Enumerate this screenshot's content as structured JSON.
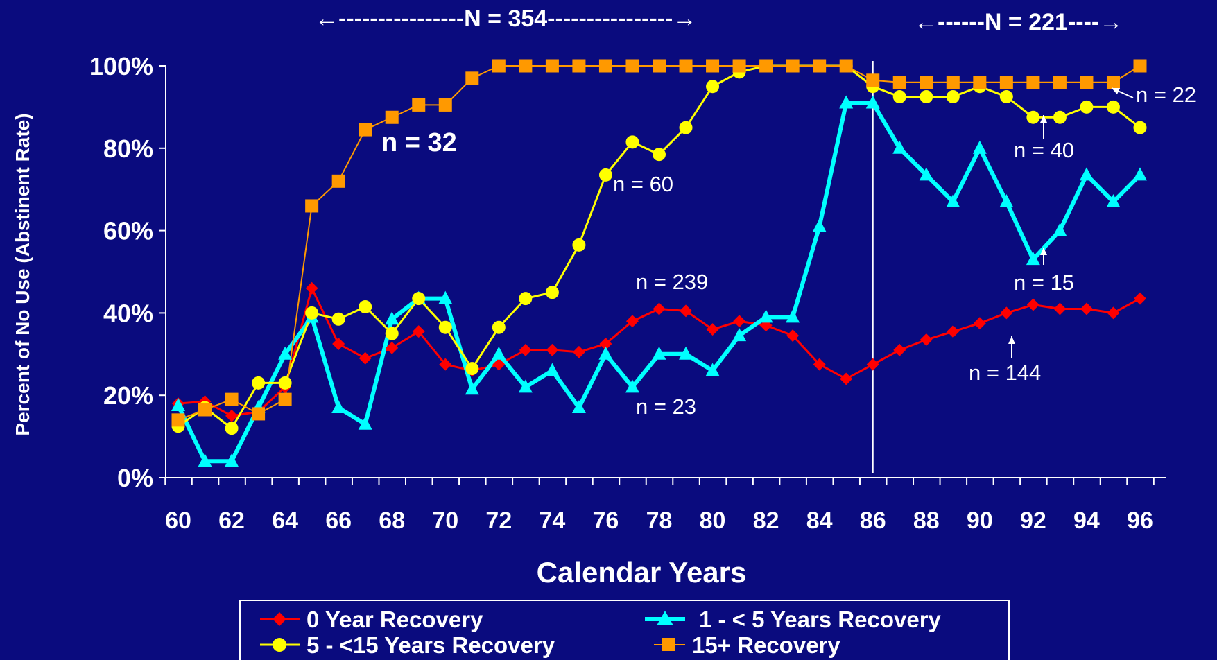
{
  "chart_data": {
    "type": "line",
    "xlabel": "Calendar Years",
    "ylabel": "Percent of No Use (Abstinent Rate)",
    "xlim": [
      60,
      96
    ],
    "ylim": [
      0,
      100
    ],
    "x_ticks": [
      "60",
      "62",
      "64",
      "66",
      "68",
      "70",
      "72",
      "74",
      "76",
      "78",
      "80",
      "82",
      "84",
      "86",
      "88",
      "90",
      "92",
      "94",
      "96"
    ],
    "y_ticks": [
      "0%",
      "20%",
      "40%",
      "60%",
      "80%",
      "100%"
    ],
    "x": [
      60,
      61,
      62,
      63,
      64,
      65,
      66,
      67,
      68,
      69,
      70,
      71,
      72,
      73,
      74,
      75,
      76,
      77,
      78,
      79,
      80,
      81,
      82,
      83,
      84,
      85,
      86,
      87,
      88,
      89,
      90,
      91,
      92,
      93,
      94,
      95,
      96
    ],
    "series": [
      {
        "name": "0 Year Recovery",
        "color": "#ff0000",
        "marker": "diamond",
        "line_width": 3,
        "values": [
          18,
          18.5,
          15,
          16,
          22,
          46,
          32.5,
          29,
          31.5,
          35.5,
          27.5,
          26,
          27.5,
          31,
          31,
          30.5,
          32.5,
          38,
          41,
          40.5,
          36,
          38,
          37,
          34.5,
          27.5,
          24,
          27.5,
          31,
          33.5,
          35.5,
          37.5,
          40,
          42,
          41,
          41,
          40,
          43.5
        ]
      },
      {
        "name": "1 - < 5 Years Recovery",
        "color": "#00ffff",
        "marker": "triangle",
        "line_width": 6,
        "values": [
          17.5,
          4,
          4,
          17,
          30,
          39,
          17,
          13,
          38.5,
          43.5,
          43.5,
          21.5,
          30,
          22,
          26,
          17,
          30,
          22,
          30,
          30,
          26,
          34.5,
          39,
          39,
          61,
          91,
          91,
          80,
          73.5,
          67,
          80,
          67,
          53,
          60,
          73.5,
          67,
          73.5
        ]
      },
      {
        "name": "5  - <15 Years Recovery",
        "color": "#ffff00",
        "marker": "circle",
        "line_width": 3,
        "values": [
          12.5,
          17,
          12,
          23,
          23,
          40,
          38.5,
          41.5,
          35,
          43.5,
          36.5,
          26.5,
          36.5,
          43.5,
          45,
          56.5,
          73.5,
          81.5,
          78.5,
          85,
          95,
          98.5,
          100,
          100,
          100,
          100,
          95,
          92.5,
          92.5,
          92.5,
          95,
          92.5,
          87.5,
          87.5,
          90,
          90,
          85
        ]
      },
      {
        "name": "15+ Recovery",
        "color": "#ff9900",
        "marker": "square",
        "line_width": 2,
        "values": [
          14,
          16.5,
          19,
          15.5,
          19,
          66,
          72,
          84.5,
          87.5,
          90.5,
          90.5,
          97,
          100,
          100,
          100,
          100,
          100,
          100,
          100,
          100,
          100,
          100,
          100,
          100,
          100,
          100,
          96.5,
          96,
          96,
          96,
          96,
          96,
          96,
          96,
          96,
          96,
          100
        ]
      }
    ],
    "annotations": [
      {
        "text": "n = 32",
        "style": "bold"
      },
      {
        "text": "n = 60"
      },
      {
        "text": "n = 239"
      },
      {
        "text": "n = 23"
      },
      {
        "text": "n = 22"
      },
      {
        "text": "n = 40"
      },
      {
        "text": "n = 15"
      },
      {
        "text": "n = 144"
      }
    ],
    "range_labels": [
      {
        "text": "←----------------N = 354----------------→"
      },
      {
        "text": "←------N = 221----→"
      }
    ],
    "divider_x": 86,
    "legend": {
      "placement": "bottom",
      "entries": [
        "0 Year Recovery",
        "1 - < 5 Years Recovery",
        "5  - <15 Years Recovery",
        "15+ Recovery"
      ]
    },
    "grid": false,
    "background": "#0a0b7e"
  }
}
